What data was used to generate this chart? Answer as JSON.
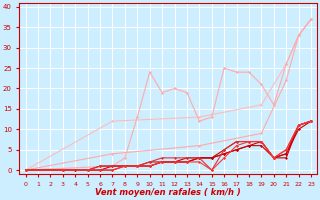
{
  "background_color": "#cceeff",
  "grid_color": "#ffffff",
  "xlabel": "Vent moyen/en rafales ( km/h )",
  "xlabel_color": "#cc0000",
  "axis_color": "#cc0000",
  "tick_color": "#cc0000",
  "xlim": [
    -0.5,
    23.5
  ],
  "ylim": [
    -1,
    41
  ],
  "xticks": [
    0,
    1,
    2,
    3,
    4,
    5,
    6,
    7,
    8,
    9,
    10,
    11,
    12,
    13,
    14,
    15,
    16,
    17,
    18,
    19,
    20,
    21,
    22,
    23
  ],
  "yticks": [
    0,
    5,
    10,
    15,
    20,
    25,
    30,
    35,
    40
  ],
  "lines": [
    {
      "x": [
        0,
        7,
        14,
        19,
        21,
        22,
        23
      ],
      "y": [
        0,
        12,
        13,
        16,
        26,
        33,
        37
      ],
      "color": "#ffbbbb",
      "lw": 0.8
    },
    {
      "x": [
        0,
        7,
        8,
        9,
        10,
        11,
        12,
        13,
        14,
        15,
        16,
        17,
        18,
        19,
        20,
        21,
        22,
        23
      ],
      "y": [
        0,
        1,
        3,
        13,
        24,
        19,
        20,
        19,
        12,
        13,
        25,
        24,
        24,
        21,
        16,
        26,
        33,
        37
      ],
      "color": "#ffaaaa",
      "lw": 0.8
    },
    {
      "x": [
        0,
        7,
        14,
        19,
        21,
        22,
        23
      ],
      "y": [
        0,
        4,
        6,
        9,
        22,
        33,
        37
      ],
      "color": "#ffaaaa",
      "lw": 0.8
    },
    {
      "x": [
        0,
        3,
        4,
        5,
        6,
        7,
        8,
        9,
        10,
        11,
        12,
        13,
        14,
        15,
        16,
        17,
        18,
        19,
        20,
        21,
        22,
        23
      ],
      "y": [
        0,
        0,
        0,
        0,
        0,
        0,
        1,
        1,
        1,
        2,
        2,
        3,
        3,
        3,
        5,
        7,
        7,
        7,
        3,
        4,
        11,
        12
      ],
      "color": "#cc0000",
      "lw": 0.8
    },
    {
      "x": [
        0,
        3,
        4,
        5,
        6,
        7,
        8,
        9,
        10,
        11,
        12,
        13,
        14,
        15,
        16,
        17,
        18,
        19,
        20,
        21,
        22,
        23
      ],
      "y": [
        0,
        0,
        0,
        0,
        1,
        1,
        1,
        1,
        2,
        2,
        2,
        2,
        3,
        3,
        4,
        5,
        6,
        7,
        3,
        4,
        10,
        12
      ],
      "color": "#cc0000",
      "lw": 0.8
    },
    {
      "x": [
        0,
        3,
        4,
        5,
        6,
        7,
        8,
        9,
        10,
        11,
        12,
        13,
        14,
        15,
        16,
        17,
        18,
        19,
        20,
        21,
        22,
        23
      ],
      "y": [
        0,
        0,
        0,
        0,
        0,
        1,
        1,
        1,
        1,
        2,
        2,
        2,
        3,
        3,
        4,
        5,
        6,
        6,
        3,
        3,
        11,
        12
      ],
      "color": "#cc0000",
      "lw": 0.8
    },
    {
      "x": [
        0,
        3,
        5,
        6,
        7,
        8,
        9,
        10,
        11,
        12,
        13,
        14,
        15,
        16,
        17,
        18,
        19,
        20,
        21,
        22,
        23
      ],
      "y": [
        0,
        0,
        0,
        1,
        1,
        1,
        1,
        2,
        3,
        3,
        3,
        3,
        0,
        5,
        7,
        7,
        7,
        3,
        5,
        11,
        12
      ],
      "color": "#dd3333",
      "lw": 0.8
    },
    {
      "x": [
        0,
        3,
        5,
        6,
        7,
        8,
        9,
        10,
        11,
        12,
        13,
        14,
        15,
        16,
        17,
        18,
        19,
        20,
        21,
        22,
        23
      ],
      "y": [
        0,
        0,
        0,
        0,
        0,
        1,
        1,
        1,
        2,
        2,
        2,
        2,
        0,
        3,
        6,
        7,
        7,
        3,
        5,
        11,
        12
      ],
      "color": "#ff3333",
      "lw": 0.8
    }
  ],
  "markers": [
    {
      "x": [
        0,
        3,
        7,
        14,
        19,
        21,
        22,
        23
      ],
      "y": [
        0,
        0,
        12,
        13,
        16,
        26,
        33,
        37
      ],
      "color": "#ffbbbb"
    },
    {
      "x": [
        0,
        7,
        8,
        9,
        10,
        11,
        12,
        13,
        14,
        15,
        16,
        17,
        18,
        19,
        20,
        21,
        22,
        23
      ],
      "y": [
        0,
        1,
        3,
        13,
        24,
        19,
        20,
        19,
        12,
        13,
        25,
        24,
        24,
        21,
        16,
        26,
        33,
        37
      ],
      "color": "#ffaaaa"
    },
    {
      "x": [
        0,
        7,
        14,
        19,
        21,
        22,
        23
      ],
      "y": [
        0,
        4,
        6,
        9,
        22,
        33,
        37
      ],
      "color": "#ffaaaa"
    }
  ]
}
